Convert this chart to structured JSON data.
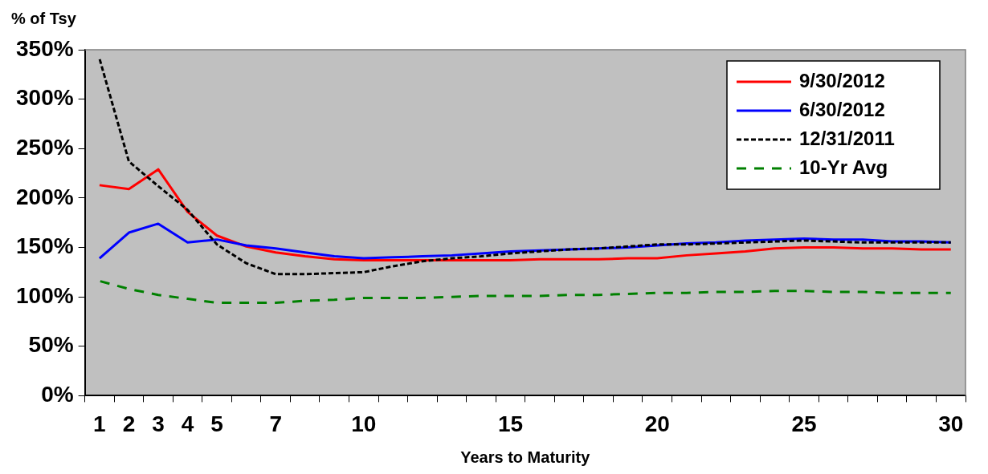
{
  "chart_data": {
    "type": "line",
    "ylabel": "% of Tsy",
    "xlabel": "Years to Maturity",
    "categories": [
      "1",
      "2",
      "3",
      "4",
      "5",
      null,
      "7",
      null,
      null,
      "10",
      null,
      null,
      null,
      null,
      "15",
      null,
      null,
      null,
      null,
      "20",
      null,
      null,
      null,
      null,
      "25",
      null,
      null,
      null,
      null,
      "30"
    ],
    "ylim": [
      0,
      350
    ],
    "yticks": [
      {
        "value": 0,
        "label": "0%"
      },
      {
        "value": 50,
        "label": "50%"
      },
      {
        "value": 100,
        "label": "100%"
      },
      {
        "value": 150,
        "label": "150%"
      },
      {
        "value": 200,
        "label": "200%"
      },
      {
        "value": 250,
        "label": "250%"
      },
      {
        "value": 300,
        "label": "300%"
      },
      {
        "value": 350,
        "label": "350%"
      }
    ],
    "grid": false,
    "legend": "top right",
    "marker": "none",
    "series": [
      {
        "name": "9/30/2012",
        "color": "#ff0000",
        "line_style": "solid",
        "values": [
          213,
          209,
          229,
          186,
          162,
          151,
          145,
          141,
          138,
          137,
          137,
          137,
          137,
          137,
          137,
          138,
          138,
          138,
          139,
          139,
          142,
          144,
          146,
          149,
          150,
          150,
          149,
          149,
          148,
          148
        ]
      },
      {
        "name": "6/30/2012",
        "color": "#0000ff",
        "line_style": "solid",
        "values": [
          139,
          165,
          174,
          155,
          158,
          152,
          149,
          145,
          141,
          139,
          140,
          141,
          142,
          144,
          146,
          147,
          148,
          149,
          150,
          152,
          154,
          155,
          157,
          158,
          159,
          158,
          158,
          156,
          156,
          155
        ]
      },
      {
        "name": "12/31/2011",
        "color": "#000000",
        "line_style": "dashed",
        "values": [
          341,
          237,
          212,
          188,
          153,
          134,
          123,
          123,
          124,
          125,
          131,
          136,
          139,
          141,
          144,
          146,
          148,
          149,
          151,
          153,
          153,
          154,
          155,
          156,
          157,
          156,
          155,
          155,
          155,
          155
        ]
      },
      {
        "name": "10-Yr Avg",
        "color": "#008000",
        "line_style": "dashed",
        "values": [
          116,
          108,
          102,
          98,
          94,
          94,
          94,
          96,
          97,
          99,
          99,
          99,
          100,
          101,
          101,
          101,
          102,
          102,
          103,
          104,
          104,
          105,
          105,
          106,
          106,
          105,
          105,
          104,
          104,
          104
        ]
      }
    ]
  }
}
